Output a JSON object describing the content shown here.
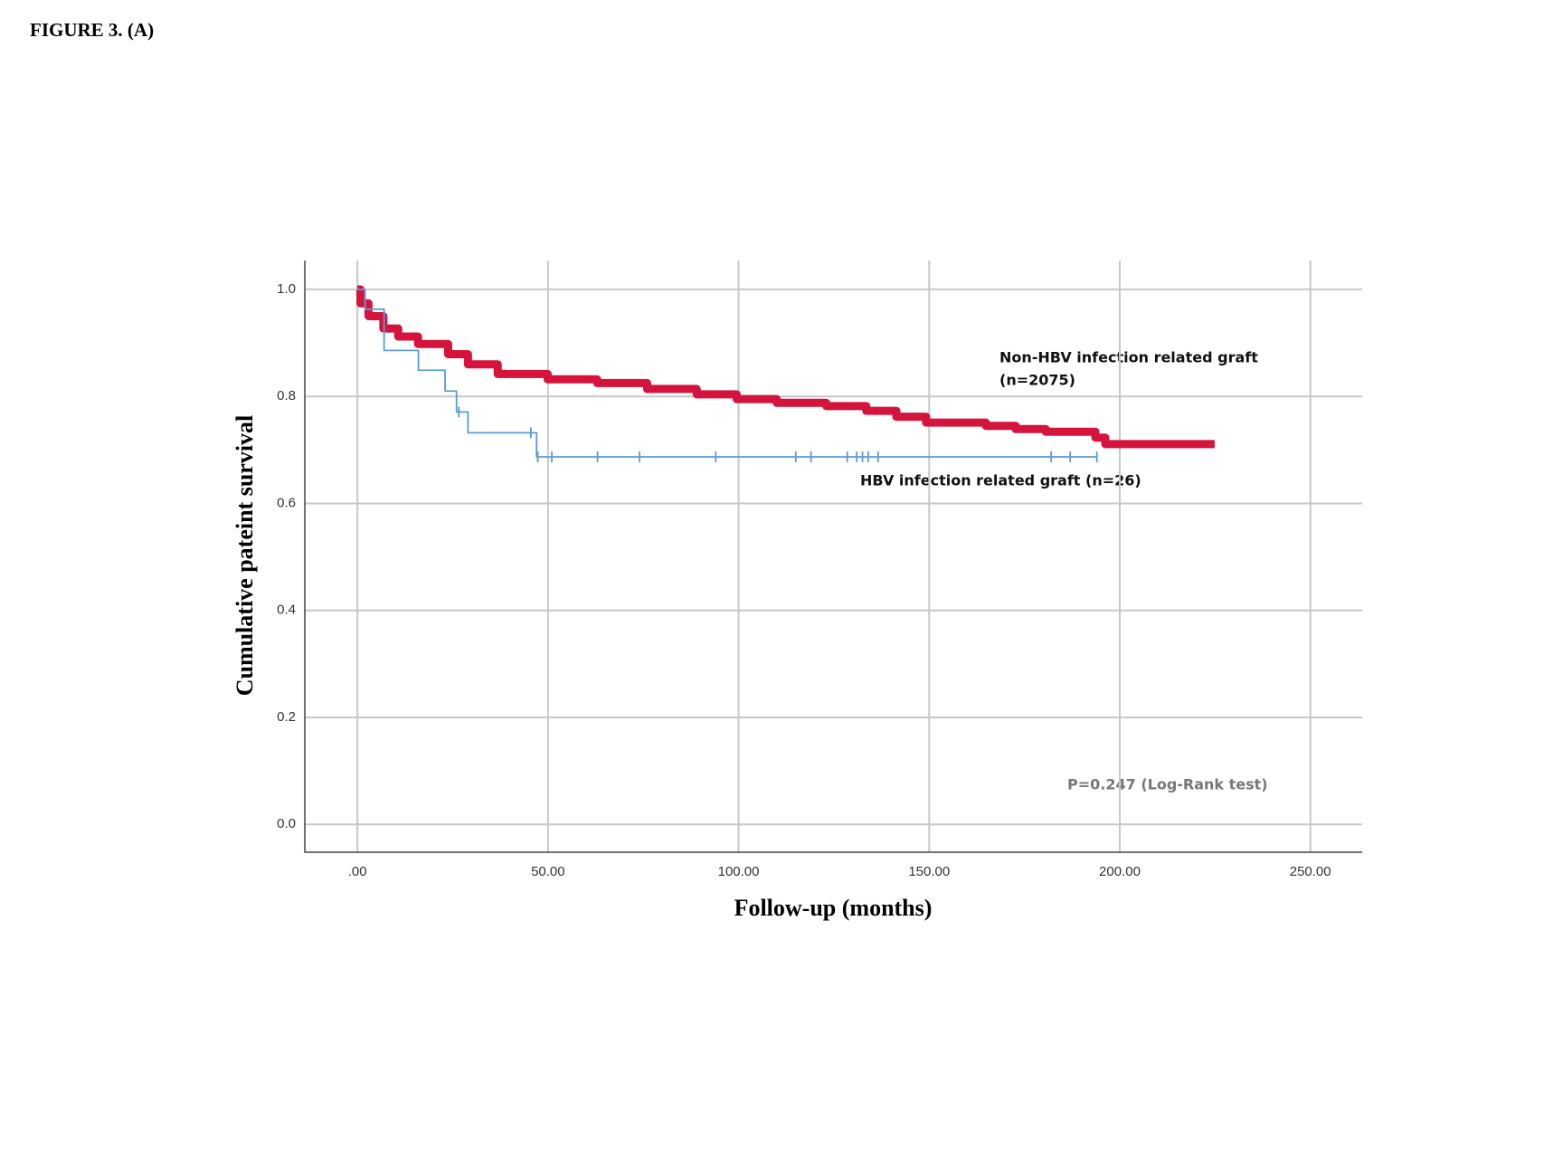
{
  "figure_label": "FIGURE 3. (A)",
  "chart_data": {
    "type": "line",
    "step": true,
    "x_label": "Follow-up (months)",
    "y_label": "Cumulative pateint survival",
    "xlim": [
      -13.8,
      263.6
    ],
    "ylim": [
      -0.052,
      1.054
    ],
    "xticks": [
      {
        "value": 0,
        "label": ".00"
      },
      {
        "value": 50,
        "label": "50.00"
      },
      {
        "value": 100,
        "label": "100.00"
      },
      {
        "value": 150,
        "label": "150.00"
      },
      {
        "value": 200,
        "label": "200.00"
      },
      {
        "value": 250,
        "label": "250.00"
      }
    ],
    "yticks": [
      {
        "value": 0,
        "label": "0.0"
      },
      0.2,
      0.4,
      0.6,
      0.8,
      {
        "value": 1,
        "label": "1.0"
      }
    ],
    "grid": true,
    "series": [
      {
        "color": "#d4143c",
        "x": [
          0,
          0.8,
          2.9,
          6.8,
          10.7,
          15.9,
          23.8,
          29,
          36.8,
          49.9,
          62.9,
          76,
          89,
          99.5,
          110,
          123,
          133.5,
          141.4,
          149.2,
          164.9,
          172.7,
          180.6,
          193.6,
          196.2,
          224.9
        ],
        "values": [
          1.0,
          0.974,
          0.95,
          0.927,
          0.912,
          0.898,
          0.879,
          0.86,
          0.842,
          0.832,
          0.825,
          0.814,
          0.804,
          0.795,
          0.788,
          0.782,
          0.773,
          0.762,
          0.751,
          0.745,
          0.739,
          0.734,
          0.723,
          0.711,
          0.711
        ]
      },
      {
        "color": "#5b9bd5",
        "x": [
          0,
          2,
          7,
          16,
          23,
          26,
          29,
          47,
          194
        ],
        "values": [
          1.0,
          0.963,
          0.886,
          0.849,
          0.81,
          0.771,
          0.732,
          0.687,
          0.687
        ],
        "censored_x": [
          26.6,
          45.5,
          47.3,
          51,
          63,
          74,
          94,
          115,
          119,
          128.5,
          131,
          132.5,
          134,
          136.6,
          182,
          187,
          194
        ]
      }
    ],
    "annotations": [
      "Non-HBV infection related graft",
      "(n=2075)",
      "HBV infection related graft (n=26)",
      "P=0.247 (Log-Rank test)"
    ]
  }
}
